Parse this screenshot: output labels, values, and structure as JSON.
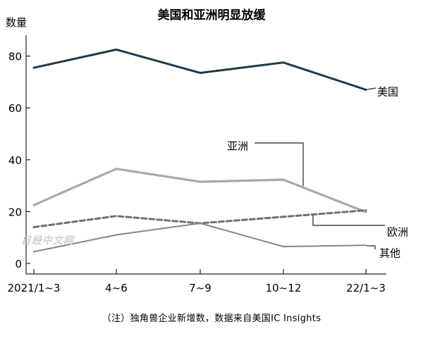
{
  "chart_data": {
    "type": "line",
    "title": "美国和亚洲明显放缓",
    "ylabel": "数量",
    "xlabel": "",
    "categories": [
      "2021/1~3",
      "4~6",
      "7~9",
      "10~12",
      "22/1~3"
    ],
    "ylim": [
      0,
      90
    ],
    "yticks": [
      0,
      20,
      40,
      60,
      80
    ],
    "grid": false,
    "legend": "inline-labels",
    "series": [
      {
        "name": "美国",
        "values": [
          75.5,
          82.5,
          73.5,
          77.5,
          67
        ],
        "color": "#1f3a4a",
        "style": "solid"
      },
      {
        "name": "亚洲",
        "values": [
          22.5,
          36.5,
          31.5,
          32.3,
          19.8
        ],
        "color": "#a9a9a9",
        "style": "solid"
      },
      {
        "name": "欧洲",
        "values": [
          14,
          18.3,
          15.5,
          18,
          20.5
        ],
        "color": "#707070",
        "style": "dashed"
      },
      {
        "name": "其他",
        "values": [
          4.5,
          11,
          15.5,
          6.5,
          7
        ],
        "color": "#8a8283",
        "style": "solid"
      }
    ],
    "source": "（注）独角兽企业新增数，数据来自美国IC Insights",
    "watermark": "日经中文网"
  }
}
